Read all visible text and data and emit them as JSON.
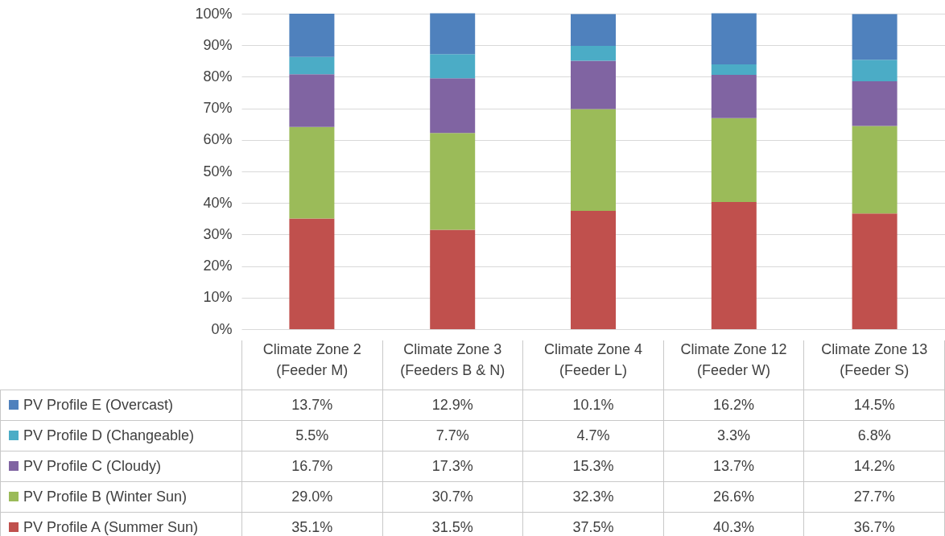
{
  "chart_data": {
    "type": "bar",
    "stacked": true,
    "legend": "bottom",
    "grid": "y",
    "categories": [
      "Climate Zone 2 (Feeder M)",
      "Climate Zone 3 (Feeders B & N)",
      "Climate Zone 4 (Feeder L)",
      "Climate Zone 12 (Feeder W)",
      "Climate Zone 13 (Feeder S)"
    ],
    "ylim": [
      0,
      100
    ],
    "yticks": [
      {
        "value": 0,
        "label": "0%"
      },
      {
        "value": 10,
        "label": "10%"
      },
      {
        "value": 20,
        "label": "20%"
      },
      {
        "value": 30,
        "label": "30%"
      },
      {
        "value": 40,
        "label": "40%"
      },
      {
        "value": 50,
        "label": "50%"
      },
      {
        "value": 60,
        "label": "60%"
      },
      {
        "value": 70,
        "label": "70%"
      },
      {
        "value": 80,
        "label": "80%"
      },
      {
        "value": 90,
        "label": "90%"
      },
      {
        "value": 100,
        "label": "100%"
      }
    ],
    "series": [
      {
        "name": "PV Profile A (Summer Sun)",
        "color": "#c0504d",
        "values": [
          35.1,
          31.5,
          37.5,
          40.3,
          36.7
        ],
        "value_labels": [
          "35.1%",
          "31.5%",
          "37.5%",
          "40.3%",
          "36.7%"
        ]
      },
      {
        "name": "PV Profile B (Winter Sun)",
        "color": "#9bbb59",
        "values": [
          29.0,
          30.7,
          32.3,
          26.6,
          27.7
        ],
        "value_labels": [
          "29.0%",
          "30.7%",
          "32.3%",
          "26.6%",
          "27.7%"
        ]
      },
      {
        "name": "PV Profile C (Cloudy)",
        "color": "#8064a2",
        "values": [
          16.7,
          17.3,
          15.3,
          13.7,
          14.2
        ],
        "value_labels": [
          "16.7%",
          "17.3%",
          "15.3%",
          "13.7%",
          "14.2%"
        ]
      },
      {
        "name": "PV Profile D (Changeable)",
        "color": "#4bacc6",
        "values": [
          5.5,
          7.7,
          4.7,
          3.3,
          6.8
        ],
        "value_labels": [
          "5.5%",
          "7.7%",
          "4.7%",
          "3.3%",
          "6.8%"
        ]
      },
      {
        "name": "PV Profile E (Overcast)",
        "color": "#4f81bd",
        "values": [
          13.7,
          12.9,
          10.1,
          16.2,
          14.5
        ],
        "value_labels": [
          "13.7%",
          "12.9%",
          "10.1%",
          "16.2%",
          "14.5%"
        ]
      }
    ]
  }
}
